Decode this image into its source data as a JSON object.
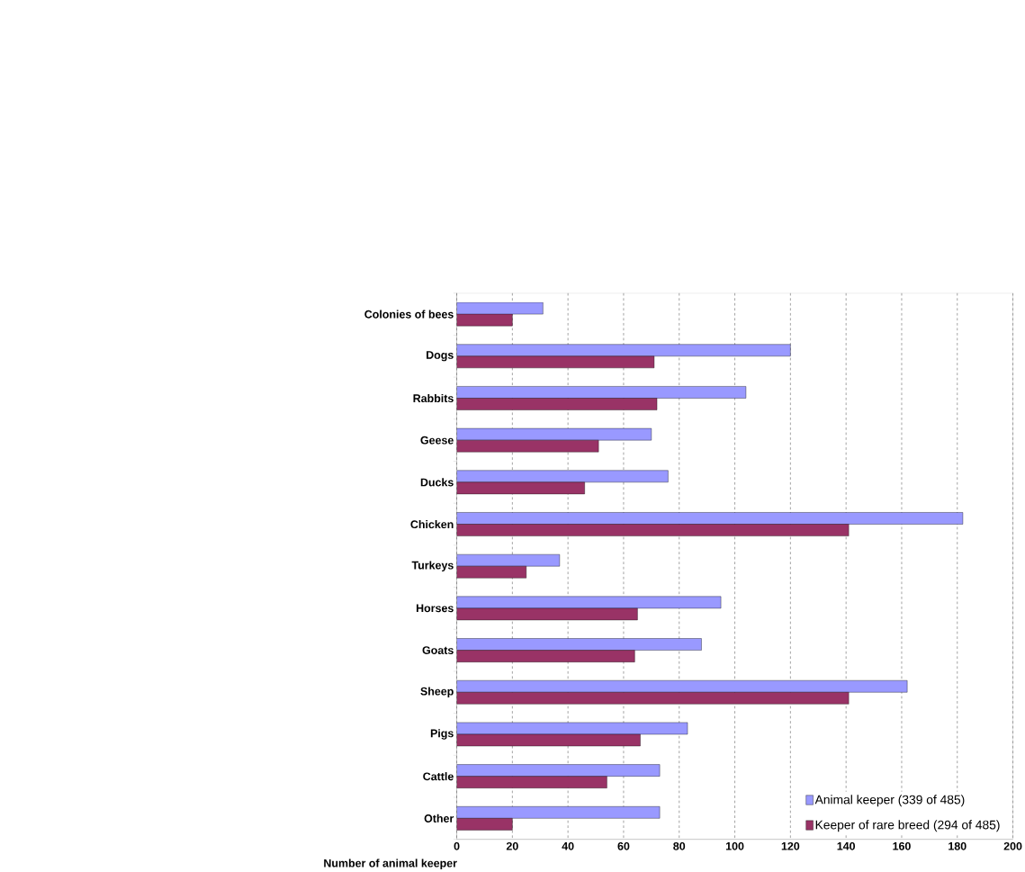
{
  "chart_data": {
    "type": "bar",
    "orientation": "horizontal",
    "xlabel": "Number of animal keeper",
    "categories": [
      "Colonies of bees",
      "Dogs",
      "Rabbits",
      "Geese",
      "Ducks",
      "Chicken",
      "Turkeys",
      "Horses",
      "Goats",
      "Sheep",
      "Pigs",
      "Cattle",
      "Other"
    ],
    "series": [
      {
        "name": "Animal keeper (339 of 485)",
        "color": "#9999ff",
        "values": [
          31,
          120,
          104,
          70,
          76,
          182,
          37,
          95,
          88,
          162,
          83,
          73,
          73
        ]
      },
      {
        "name": "Keeper of rare breed (294 of 485)",
        "color": "#993366",
        "values": [
          20,
          71,
          72,
          51,
          46,
          141,
          25,
          65,
          64,
          141,
          66,
          54,
          20
        ]
      }
    ],
    "xlim": [
      0,
      200
    ],
    "xticks": [
      0,
      20,
      40,
      60,
      80,
      100,
      120,
      140,
      160,
      180,
      200
    ],
    "grid": "x",
    "legend": "bottom right"
  }
}
